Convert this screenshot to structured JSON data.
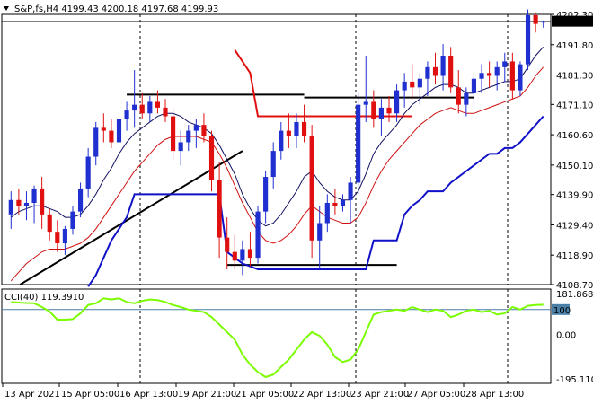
{
  "header": {
    "symbol_line": "S&P,fs,H4  4199.43 4200.18 4197.68 4199.93",
    "cci_label": "CCI(40) 119.3910"
  },
  "colors": {
    "bull": "#1f2fd0",
    "bear": "#e01010",
    "ma_fast": "#101060",
    "ma_slow": "#d01010",
    "support": "#1010c8",
    "trendline": "#000000",
    "cci": "#7cfc00",
    "cci_level": "#4a7fa8",
    "price_badge_bg": "#000000",
    "price_badge_text": "#ffffff"
  },
  "chart_data": [
    {
      "type": "candlestick",
      "title": "S&P,fs,H4",
      "current_price": "4199.93",
      "ylim": [
        4108.7,
        4202.3
      ],
      "y_ticks": [
        "4202.30",
        "4191.80",
        "4181.30",
        "4171.10",
        "4160.60",
        "4150.10",
        "4139.90",
        "4129.40",
        "4118.90",
        "4108.70"
      ],
      "x_ticks": [
        "13 Apr 2021",
        "15 Apr 05:00",
        "16 Apr 13:00",
        "19 Apr 21:00",
        "21 Apr 05:00",
        "22 Apr 13:00",
        "23 Apr 21:00",
        "27 Apr 05:00",
        "28 Apr 13:00"
      ],
      "candles": [
        [
          4133,
          4141,
          4128,
          4138
        ],
        [
          4138,
          4142,
          4133,
          4136
        ],
        [
          4136,
          4141,
          4131,
          4137
        ],
        [
          4137,
          4143,
          4130,
          4142
        ],
        [
          4142,
          4146,
          4128,
          4133
        ],
        [
          4133,
          4135,
          4124,
          4127
        ],
        [
          4127,
          4131,
          4120,
          4123
        ],
        [
          4123,
          4129,
          4119,
          4128
        ],
        [
          4128,
          4136,
          4126,
          4134
        ],
        [
          4134,
          4144,
          4132,
          4142
        ],
        [
          4142,
          4156,
          4139,
          4153
        ],
        [
          4153,
          4165,
          4150,
          4163
        ],
        [
          4163,
          4168,
          4158,
          4162
        ],
        [
          4162,
          4166,
          4156,
          4158
        ],
        [
          4158,
          4168,
          4155,
          4166
        ],
        [
          4166,
          4172,
          4162,
          4169
        ],
        [
          4169,
          4183,
          4163,
          4171
        ],
        [
          4171,
          4175,
          4166,
          4168
        ],
        [
          4168,
          4174,
          4165,
          4172
        ],
        [
          4172,
          4176,
          4168,
          4170
        ],
        [
          4170,
          4173,
          4165,
          4167
        ],
        [
          4167,
          4170,
          4152,
          4155
        ],
        [
          4155,
          4162,
          4150,
          4158
        ],
        [
          4158,
          4164,
          4155,
          4162
        ],
        [
          4162,
          4166,
          4156,
          4164
        ],
        [
          4164,
          4168,
          4158,
          4160
        ],
        [
          4160,
          4162,
          4141,
          4145
        ],
        [
          4145,
          4151,
          4118,
          4125
        ],
        [
          4125,
          4132,
          4114,
          4120
        ],
        [
          4120,
          4126,
          4114,
          4117
        ],
        [
          4117,
          4124,
          4112,
          4121
        ],
        [
          4121,
          4127,
          4115,
          4118
        ],
        [
          4118,
          4136,
          4116,
          4134
        ],
        [
          4134,
          4148,
          4130,
          4146
        ],
        [
          4146,
          4158,
          4142,
          4155
        ],
        [
          4155,
          4165,
          4152,
          4162
        ],
        [
          4162,
          4168,
          4156,
          4160
        ],
        [
          4160,
          4168,
          4156,
          4165
        ],
        [
          4165,
          4171,
          4158,
          4160
        ],
        [
          4160,
          4164,
          4118,
          4124
        ],
        [
          4124,
          4136,
          4114,
          4130
        ],
        [
          4130,
          4140,
          4127,
          4137
        ],
        [
          4137,
          4142,
          4133,
          4136
        ],
        [
          4136,
          4140,
          4134,
          4138
        ],
        [
          4138,
          4146,
          4130,
          4144
        ],
        [
          4144,
          4175,
          4140,
          4171
        ],
        [
          4171,
          4188,
          4165,
          4172
        ],
        [
          4172,
          4176,
          4163,
          4166
        ],
        [
          4166,
          4173,
          4160,
          4170
        ],
        [
          4170,
          4174,
          4165,
          4168
        ],
        [
          4168,
          4178,
          4165,
          4176
        ],
        [
          4176,
          4182,
          4170,
          4179
        ],
        [
          4179,
          4185,
          4173,
          4177
        ],
        [
          4177,
          4182,
          4171,
          4180
        ],
        [
          4180,
          4186,
          4174,
          4184
        ],
        [
          4184,
          4189,
          4178,
          4181
        ],
        [
          4181,
          4192,
          4176,
          4188
        ],
        [
          4188,
          4191,
          4175,
          4177
        ],
        [
          4177,
          4183,
          4168,
          4171
        ],
        [
          4171,
          4177,
          4167,
          4175
        ],
        [
          4175,
          4182,
          4170,
          4180
        ],
        [
          4180,
          4185,
          4175,
          4182
        ],
        [
          4182,
          4186,
          4177,
          4181
        ],
        [
          4181,
          4186,
          4176,
          4184
        ],
        [
          4184,
          4189,
          4179,
          4186
        ],
        [
          4186,
          4189,
          4173,
          4176
        ],
        [
          4176,
          4186,
          4174,
          4185
        ],
        [
          4185,
          4204,
          4183,
          4202
        ],
        [
          4202,
          4203,
          4196,
          4199
        ],
        [
          4199.43,
          4200.18,
          4197.68,
          4199.93
        ]
      ],
      "ma_fast_values": [
        4132,
        4134,
        4135,
        4136,
        4136,
        4135,
        4134,
        4132,
        4132,
        4133,
        4136,
        4140,
        4145,
        4149,
        4154,
        4158,
        4161,
        4163,
        4165,
        4167,
        4168,
        4168,
        4167,
        4165,
        4164,
        4163,
        4161,
        4157,
        4152,
        4147,
        4140,
        4135,
        4131,
        4129,
        4130,
        4133,
        4137,
        4141,
        4146,
        4148,
        4144,
        4141,
        4139,
        4138,
        4138,
        4141,
        4147,
        4154,
        4158,
        4161,
        4164,
        4168,
        4171,
        4173,
        4175,
        4177,
        4178,
        4178,
        4177,
        4175,
        4175,
        4176,
        4177,
        4178,
        4179,
        4179,
        4180,
        4184,
        4188,
        4191
      ],
      "ma_slow_values": [
        4110,
        4113,
        4116,
        4118,
        4120,
        4121,
        4121,
        4121,
        4122,
        4123,
        4125,
        4128,
        4132,
        4136,
        4140,
        4144,
        4148,
        4151,
        4154,
        4157,
        4159,
        4160,
        4160,
        4160,
        4160,
        4159,
        4158,
        4154,
        4149,
        4143,
        4137,
        4132,
        4127,
        4124,
        4123,
        4124,
        4126,
        4129,
        4133,
        4136,
        4134,
        4132,
        4131,
        4130,
        4130,
        4132,
        4137,
        4143,
        4148,
        4152,
        4155,
        4158,
        4161,
        4164,
        4166,
        4168,
        4169,
        4170,
        4169,
        4168,
        4168,
        4169,
        4170,
        4171,
        4172,
        4173,
        4174,
        4177,
        4181,
        4184
      ],
      "support_line_values": [
        null,
        null,
        null,
        null,
        null,
        null,
        null,
        null,
        null,
        null,
        4108,
        4112,
        4118,
        4124,
        4128,
        4132,
        4140,
        4140,
        4140,
        4140,
        4140,
        4140,
        4140,
        4140,
        4140,
        4140,
        4140,
        4140,
        4120,
        4118,
        4116,
        4115,
        4114,
        4114,
        4114,
        4114,
        4114,
        4114,
        4114,
        4114,
        4114,
        4114,
        4114,
        4114,
        4114,
        4114,
        4114,
        4124,
        4124,
        4124,
        4124,
        4133,
        4136,
        4138,
        4141,
        4141,
        4141,
        4144,
        4146,
        4148,
        4150,
        4152,
        4154,
        4154,
        4156,
        4156,
        4158,
        4161,
        4164,
        4167
      ],
      "black_levels": [
        4174.5,
        4173.5,
        4115.5
      ],
      "red_level": 4167.0,
      "trendline": {
        "from": 4108.7,
        "to": 4155
      }
    },
    {
      "type": "line",
      "title": "CCI(40) 119.3910",
      "ylim": [
        -195.1105,
        181.8683
      ],
      "y_ticks": [
        "181.8683",
        "100",
        "0.00",
        "-195.1105"
      ],
      "level": 100,
      "values": [
        130,
        128,
        126,
        125,
        110,
        92,
        60,
        60,
        62,
        85,
        118,
        125,
        145,
        140,
        145,
        130,
        125,
        135,
        140,
        138,
        130,
        118,
        110,
        100,
        95,
        90,
        70,
        40,
        10,
        -20,
        -80,
        -120,
        -150,
        -170,
        -160,
        -130,
        -100,
        -60,
        -20,
        10,
        -5,
        -40,
        -90,
        -110,
        -100,
        -60,
        10,
        80,
        90,
        95,
        100,
        95,
        110,
        100,
        90,
        100,
        95,
        70,
        80,
        95,
        100,
        90,
        95,
        80,
        85,
        110,
        100,
        115,
        118,
        119.391
      ]
    }
  ]
}
